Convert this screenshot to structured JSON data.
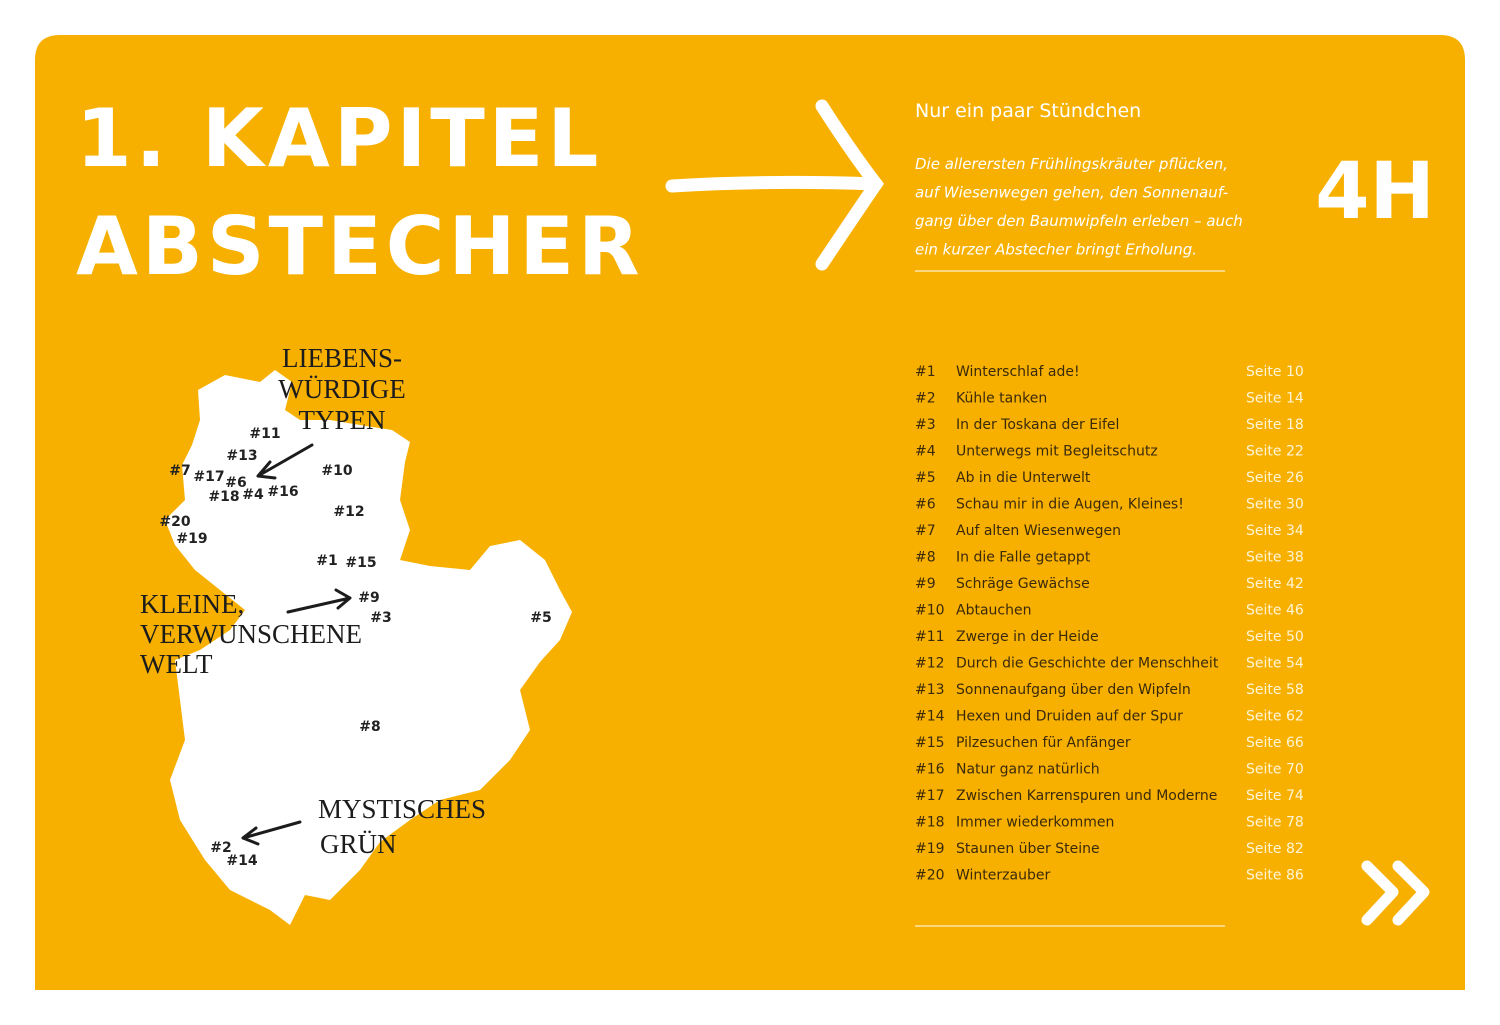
{
  "title": [
    "1. KAPITEL",
    "ABSTECHER"
  ],
  "intro": {
    "heading": "Nur ein paar Stündchen",
    "text": [
      "Die allerersten Frühlingskräuter pflücken,",
      "auf Wiesenwegen gehen, den Sonnenauf-",
      "gang über den Baumwipfeln erleben – auch",
      "ein kurzer Abstecher bringt Erholung."
    ]
  },
  "duration": "4H",
  "map": {
    "annotations": [
      [
        "LIEBENS-",
        "WÜRDIGE",
        "TYPEN"
      ],
      [
        "KLEINE,",
        "VERWUNSCHENE",
        "WELT"
      ],
      [
        "MYSTISCHES",
        "GRÜN"
      ]
    ],
    "markers": [
      "#11",
      "#13",
      "#7",
      "#17",
      "#6",
      "#10",
      "#18",
      "#4",
      "#16",
      "#12",
      "#20",
      "#19",
      "#1",
      "#15",
      "#9",
      "#3",
      "#5",
      "#8",
      "#2",
      "#14"
    ]
  },
  "toc": [
    {
      "number": "#1",
      "title": "Winterschlaf ade!",
      "page": "Seite 10"
    },
    {
      "number": "#2",
      "title": "Kühle tanken",
      "page": "Seite 14"
    },
    {
      "number": "#3",
      "title": "In der Toskana der Eifel",
      "page": "Seite 18"
    },
    {
      "number": "#4",
      "title": "Unterwegs mit Begleitschutz",
      "page": "Seite 22"
    },
    {
      "number": "#5",
      "title": "Ab in die Unterwelt",
      "page": "Seite 26"
    },
    {
      "number": "#6",
      "title": "Schau mir in die Augen, Kleines!",
      "page": "Seite 30"
    },
    {
      "number": "#7",
      "title": "Auf alten Wiesenwegen",
      "page": "Seite 34"
    },
    {
      "number": "#8",
      "title": "In die Falle getappt",
      "page": "Seite 38"
    },
    {
      "number": "#9",
      "title": "Schräge Gewächse",
      "page": "Seite 42"
    },
    {
      "number": "#10",
      "title": "Abtauchen",
      "page": "Seite 46"
    },
    {
      "number": "#11",
      "title": "Zwerge in der Heide",
      "page": "Seite 50"
    },
    {
      "number": "#12",
      "title": "Durch die Geschichte der Menschheit",
      "page": "Seite 54"
    },
    {
      "number": "#13",
      "title": "Sonnenaufgang über den Wipfeln",
      "page": "Seite 58"
    },
    {
      "number": "#14",
      "title": "Hexen und Druiden auf der Spur",
      "page": "Seite 62"
    },
    {
      "number": "#15",
      "title": "Pilzesuchen für Anfänger",
      "page": "Seite 66"
    },
    {
      "number": "#16",
      "title": "Natur ganz natürlich",
      "page": "Seite 70"
    },
    {
      "number": "#17",
      "title": "Zwischen Karrenspuren und Moderne",
      "page": "Seite 74"
    },
    {
      "number": "#18",
      "title": "Immer wiederkommen",
      "page": "Seite 78"
    },
    {
      "number": "#19",
      "title": "Staunen über Steine",
      "page": "Seite 82"
    },
    {
      "number": "#20",
      "title": "Winterzauber",
      "page": "Seite 86"
    }
  ]
}
